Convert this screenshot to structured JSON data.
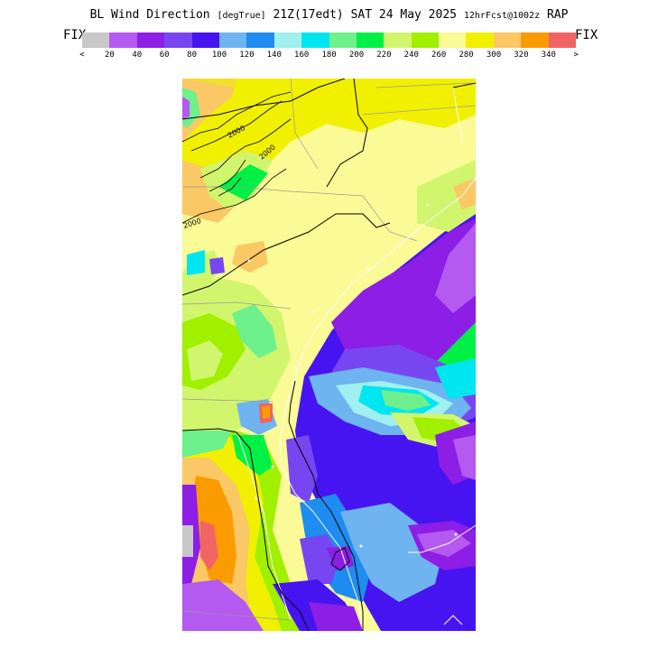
{
  "header": {
    "field": "BL Wind Direction",
    "units": "[degTrue]",
    "time": "21Z(17edt) SAT 24 May 2025",
    "forecast": "12hrFcst@1002z",
    "model": "RAP"
  },
  "legend": {
    "fix_left": "FIX",
    "fix_right": "FIX",
    "colors": [
      "#c8c8c8",
      "#b45af0",
      "#8c1ee6",
      "#7846f0",
      "#4614f0",
      "#6eb4f0",
      "#1e8cf0",
      "#a0f0f0",
      "#00e6f0",
      "#6ef08c",
      "#00f046",
      "#d2f56e",
      "#a0f000",
      "#fafa96",
      "#f0f000",
      "#fac864",
      "#fa9b00",
      "#f06464"
    ],
    "tick_labels": [
      "<",
      "20",
      "40",
      "60",
      "80",
      "100",
      "120",
      "140",
      "160",
      "180",
      "200",
      "220",
      "240",
      "260",
      "280",
      "300",
      "320",
      "340",
      ">"
    ]
  },
  "map": {
    "contour_labels": [
      "2000",
      "2000",
      "2000"
    ]
  }
}
